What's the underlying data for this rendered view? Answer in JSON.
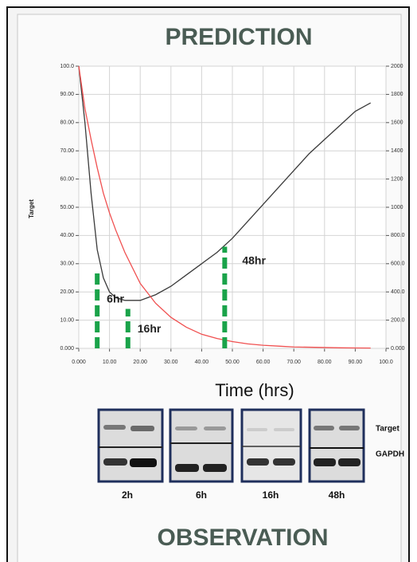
{
  "chart_data": {
    "type": "line",
    "title": "PREDICTION",
    "x_label": "Time (hrs)",
    "y_label": "Target",
    "x": [
      0,
      2,
      4,
      6,
      8,
      10,
      12,
      15,
      20,
      25,
      30,
      35,
      40,
      45,
      50,
      55,
      60,
      65,
      70,
      75,
      80,
      85,
      90,
      95
    ],
    "series": [
      {
        "color": "#3a3a3a",
        "values": [
          100,
          80,
          55,
          35,
          25,
          20,
          18,
          17,
          17,
          19,
          22,
          26,
          30,
          34,
          39,
          45,
          51,
          57,
          63,
          69,
          74,
          79,
          84,
          87
        ]
      },
      {
        "color": "#f05050",
        "values": [
          100,
          85,
          74,
          64,
          55,
          48,
          42,
          34,
          23,
          16,
          11,
          7.5,
          5,
          3.5,
          2.4,
          1.6,
          1.1,
          0.8,
          0.5,
          0.4,
          0.3,
          0.2,
          0.15,
          0.1
        ]
      }
    ],
    "xlim": [
      0,
      100
    ],
    "xticks": [
      {
        "value": 0,
        "label": "0.000"
      },
      {
        "value": 10,
        "label": "10.00"
      },
      {
        "value": 20,
        "label": "20.00"
      },
      {
        "value": 30,
        "label": "30.00"
      },
      {
        "value": 40,
        "label": "40.00"
      },
      {
        "value": 50,
        "label": "50.00"
      },
      {
        "value": 60,
        "label": "60.00"
      },
      {
        "value": 70,
        "label": "70.00"
      },
      {
        "value": 80,
        "label": "80.00"
      },
      {
        "value": 90,
        "label": "90.00"
      },
      {
        "value": 100,
        "label": "100.0"
      }
    ],
    "ylim": [
      0,
      100
    ],
    "yticks": [
      {
        "value": 0,
        "label": "0.000"
      },
      {
        "value": 10,
        "label": "10.00"
      },
      {
        "value": 20,
        "label": "20.00"
      },
      {
        "value": 30,
        "label": "30.00"
      },
      {
        "value": 40,
        "label": "40.00"
      },
      {
        "value": 50,
        "label": "50.00"
      },
      {
        "value": 60,
        "label": "60.00"
      },
      {
        "value": 70,
        "label": "70.00"
      },
      {
        "value": 80,
        "label": "80.00"
      },
      {
        "value": 90,
        "label": "90.00"
      },
      {
        "value": 100,
        "label": "100.0"
      }
    ],
    "y2lim": [
      0,
      2000
    ],
    "y2ticks": [
      {
        "value": 0,
        "label": "0.000"
      },
      {
        "value": 200,
        "label": "200.0"
      },
      {
        "value": 400,
        "label": "400.0"
      },
      {
        "value": 600,
        "label": "600.0"
      },
      {
        "value": 800,
        "label": "800.0"
      },
      1000,
      1200,
      1400,
      1600,
      1800,
      2000
    ],
    "grid": true,
    "annotations": [
      {
        "text": "6hr",
        "x": 6,
        "y": 28,
        "color": "#1aa34a"
      },
      {
        "text": "16hr",
        "x": 16,
        "y": 14,
        "color": "#1aa34a"
      },
      {
        "text": "48hr",
        "x": 47.5,
        "y": 36,
        "color": "#1aa34a"
      }
    ]
  },
  "blot": {
    "lanes": [
      "2h",
      "6h",
      "16h",
      "48h"
    ],
    "rows": [
      "Target",
      "GAPDH"
    ],
    "title": "OBSERVATION"
  }
}
